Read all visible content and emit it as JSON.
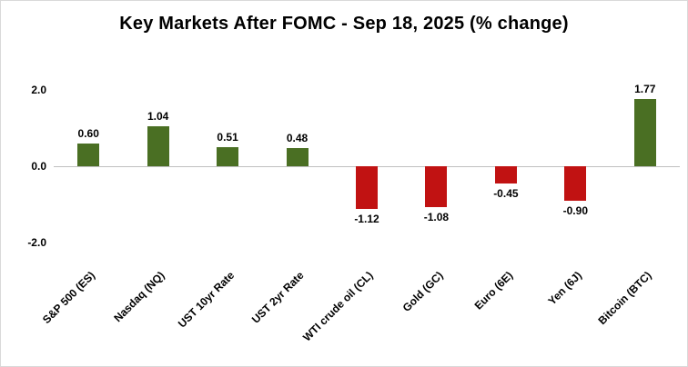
{
  "chart_data": {
    "type": "bar",
    "title": "Key Markets After FOMC - Sep 18, 2025 (% change)",
    "categories": [
      "S&P 500 (ES)",
      "Nasdaq (NQ)",
      "UST 10yr Rate",
      "UST 2yr Rate",
      "WTI crude oil (CL)",
      "Gold (GC)",
      "Euro (6E)",
      "Yen (6J)",
      "Bitcoin (BTC)"
    ],
    "values": [
      0.6,
      1.04,
      0.51,
      0.48,
      -1.12,
      -1.08,
      -0.45,
      -0.9,
      1.77
    ],
    "value_labels": [
      "0.60",
      "1.04",
      "0.51",
      "0.48",
      "-1.12",
      "-1.08",
      "-0.45",
      "-0.90",
      "1.77"
    ],
    "yticks": [
      2.0,
      0.0,
      -2.0
    ],
    "ytick_labels": [
      "2.0",
      "0.0",
      "-2.0"
    ],
    "ylim": [
      -2.19,
      2.19
    ],
    "xlabel": "",
    "ylabel": "",
    "grid": false,
    "legend": false,
    "positive_color": "#4a6f23",
    "negative_color": "#c11212",
    "axis_color": "#bfbfbf"
  }
}
